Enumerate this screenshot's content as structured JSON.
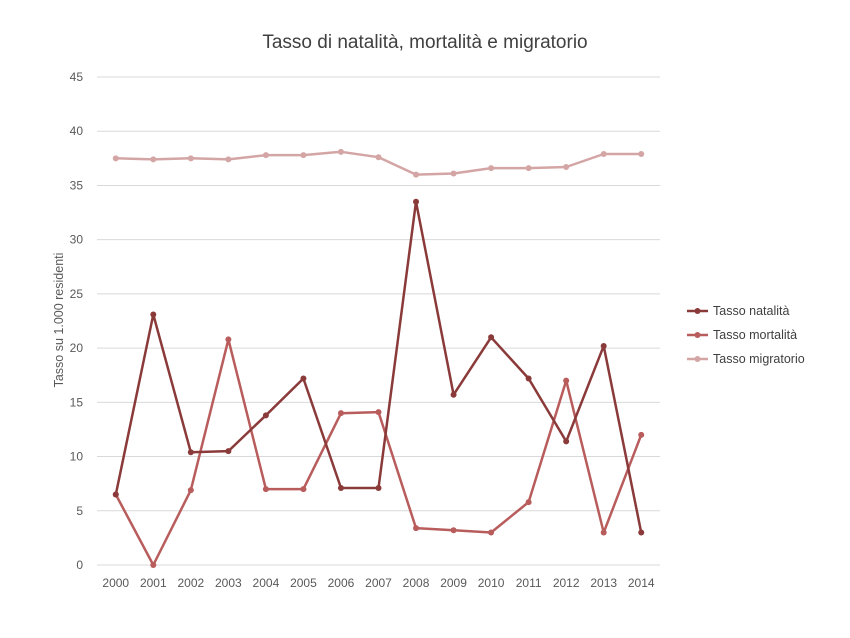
{
  "chart_data": {
    "type": "line",
    "title": "Tasso di natalità, mortalità e migratorio",
    "xlabel": "",
    "ylabel": "Tasso su 1.000 residenti",
    "ylim": [
      0,
      45
    ],
    "yticks": [
      0,
      5,
      10,
      15,
      20,
      25,
      30,
      35,
      40,
      45
    ],
    "grid": true,
    "legend_position": "right",
    "categories": [
      "2000",
      "2001",
      "2002",
      "2003",
      "2004",
      "2005",
      "2006",
      "2007",
      "2008",
      "2009",
      "2010",
      "2011",
      "2012",
      "2013",
      "2014"
    ],
    "series": [
      {
        "name": "Tasso natalità",
        "color": "#8b3a3a",
        "values": [
          6.5,
          23.1,
          10.4,
          10.5,
          13.8,
          17.2,
          7.1,
          7.1,
          33.5,
          15.7,
          21.0,
          17.2,
          11.4,
          20.2,
          3.0
        ]
      },
      {
        "name": "Tasso mortalità",
        "color": "#b85c5c",
        "values": [
          6.5,
          0.0,
          6.9,
          20.8,
          7.0,
          7.0,
          14.0,
          14.1,
          3.4,
          3.2,
          3.0,
          5.8,
          17.0,
          3.0,
          12.0
        ]
      },
      {
        "name": "Tasso migratorio",
        "color": "#d4a5a5",
        "values": [
          37.5,
          37.4,
          37.5,
          37.4,
          37.8,
          37.8,
          38.1,
          37.6,
          36.0,
          36.1,
          36.6,
          36.6,
          36.7,
          37.9,
          37.9
        ]
      }
    ]
  }
}
